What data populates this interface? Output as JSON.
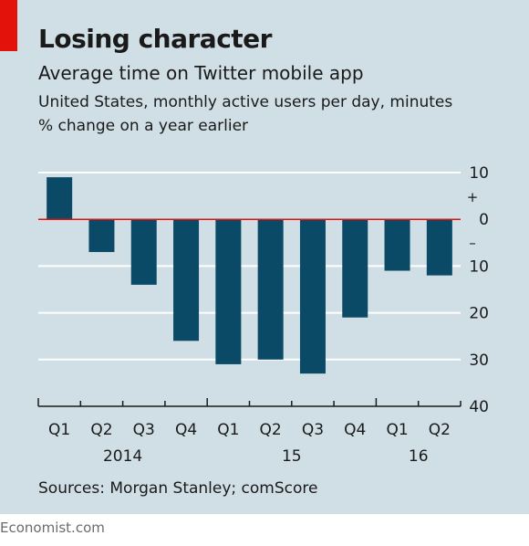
{
  "header": {
    "title": "Losing character",
    "subtitle": "Average time on Twitter mobile app",
    "caption_line1": "United States, monthly active users per day, minutes",
    "caption_line2": "% change on a year earlier"
  },
  "chart_data": {
    "type": "bar",
    "categories": [
      "Q1 2014",
      "Q2 2014",
      "Q3 2014",
      "Q4 2014",
      "Q1 2015",
      "Q2 2015",
      "Q3 2015",
      "Q4 2015",
      "Q1 2016",
      "Q2 2016"
    ],
    "values": [
      9,
      -7,
      -14,
      -26,
      -31,
      -30,
      -33,
      -21,
      -11,
      -12
    ],
    "quarter_labels": [
      "Q1",
      "Q2",
      "Q3",
      "Q4",
      "Q1",
      "Q2",
      "Q3",
      "Q4",
      "Q1",
      "Q2"
    ],
    "year_labels": [
      "2014",
      "15",
      "16"
    ],
    "ylim": [
      -40,
      10
    ],
    "yticks": [
      10,
      0,
      -10,
      -20,
      -30,
      -40
    ],
    "ytick_labels": [
      "10",
      "0",
      "10",
      "20",
      "30",
      "40"
    ],
    "sign_labels": {
      "plus": "+",
      "minus": "–"
    },
    "grid": true,
    "colors": {
      "bar": "#0a4a66",
      "zero_line": "#e3120b",
      "grid": "#ffffff",
      "axis": "#1a1a1a"
    }
  },
  "source": "Sources: Morgan Stanley; comScore",
  "footer": "Economist.com"
}
